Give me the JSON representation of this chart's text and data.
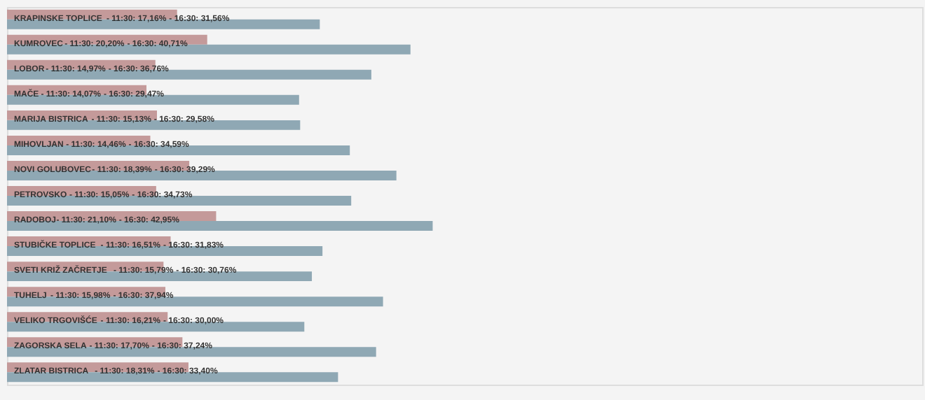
{
  "chart_data": {
    "type": "bar",
    "orientation": "horizontal",
    "categories": [
      "KRAPINSKE TOPLICE",
      "KUMROVEC",
      "LOBOR",
      "MAČE",
      "MARIJA BISTRICA",
      "MIHOVLJAN",
      "NOVI GOLUBOVEC",
      "PETROVSKO",
      "RADOBOJ",
      "STUBIČKE TOPLICE",
      "SVETI KRIŽ ZAČRETJE",
      "TUHELJ",
      "VELIKO TRGOVIŠĆE",
      "ZAGORSKA SELA",
      "ZLATAR BISTRICA"
    ],
    "series": [
      {
        "color": "#c49a9a",
        "values": [
          17.16,
          20.2,
          14.97,
          14.07,
          15.13,
          14.46,
          18.39,
          15.05,
          21.1,
          16.51,
          15.79,
          15.98,
          16.21,
          17.7,
          18.31
        ],
        "value_labels": [
          "- 11:30: 17,16%",
          "- 11:30: 20,20%",
          "- 11:30: 14,97%",
          "- 11:30: 14,07%",
          "- 11:30: 15,13%",
          "- 11:30: 14,46%",
          "- 11:30: 18,39%",
          "- 11:30: 15,05%",
          "- 11:30: 21,10%",
          "- 11:30: 16,51%",
          "- 11:30: 15,79%",
          "- 11:30: 15,98%",
          "- 11:30: 16,21%",
          "- 11:30: 17,70%",
          "- 11:30: 18,31%"
        ]
      },
      {
        "color": "#8fa8b4",
        "values": [
          31.56,
          40.71,
          36.76,
          29.47,
          29.58,
          34.59,
          39.29,
          34.73,
          42.95,
          31.83,
          30.76,
          37.94,
          30.0,
          37.24,
          33.4
        ],
        "value_labels": [
          "- 16:30: 31,56%",
          "- 16:30: 40,71%",
          "- 16:30: 36,76%",
          "- 16:30: 29,47%",
          "- 16:30: 29,58%",
          "- 16:30: 34,59%",
          "- 16:30: 39,29%",
          "- 16:30: 34,73%",
          "- 16:30: 42,95%",
          "- 16:30: 31,83%",
          "- 16:30: 30,76%",
          "- 16:30: 37,94%",
          "- 16:30: 30,00%",
          "- 16:30: 37,24%",
          "- 16:30: 33,40%"
        ]
      }
    ]
  }
}
